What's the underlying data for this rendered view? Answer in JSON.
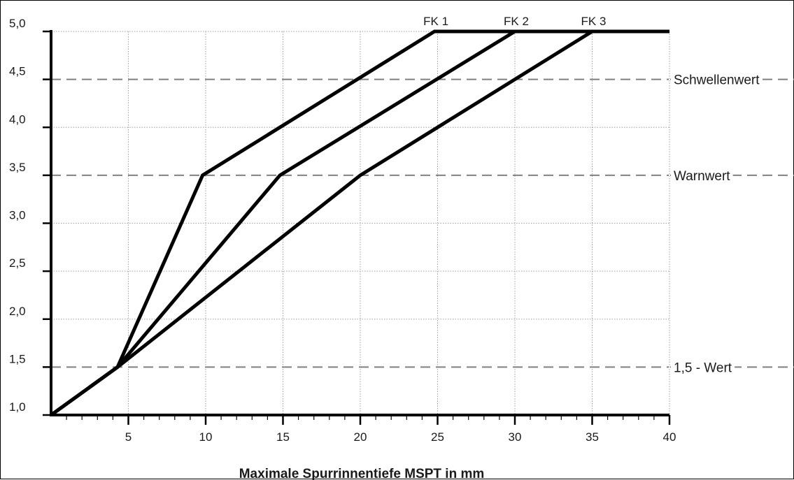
{
  "chart_data": {
    "type": "line",
    "title": "",
    "xlabel": "Maximale Spurrinnentiefe MSPT in mm",
    "ylabel": "",
    "xlim": [
      0,
      40
    ],
    "ylim": [
      1.0,
      5.0
    ],
    "x_ticks": [
      5,
      10,
      15,
      20,
      25,
      30,
      35,
      40
    ],
    "x_tick_labels": [
      "5",
      "10",
      "15",
      "20",
      "25",
      "30",
      "35",
      "40"
    ],
    "x_minor_step": 1,
    "y_ticks": [
      1.0,
      1.5,
      2.0,
      2.5,
      3.0,
      3.5,
      4.0,
      4.5,
      5.0
    ],
    "y_tick_labels": [
      "1,0",
      "1,5",
      "2,0",
      "2,5",
      "3,0",
      "3,5",
      "4,0",
      "4,5",
      "5,0"
    ],
    "grid": true,
    "series": [
      {
        "name": "FK 1",
        "x": [
          0,
          4.3,
          9.8,
          24.8,
          40
        ],
        "y": [
          1.0,
          1.5,
          3.5,
          5.0,
          5.0
        ]
      },
      {
        "name": "FK 2",
        "x": [
          0,
          4.3,
          14.8,
          30,
          40
        ],
        "y": [
          1.0,
          1.5,
          3.5,
          5.0,
          5.0
        ]
      },
      {
        "name": "FK 3",
        "x": [
          0,
          4.3,
          20,
          35,
          40
        ],
        "y": [
          1.0,
          1.5,
          3.5,
          5.0,
          5.0
        ]
      }
    ],
    "reference_lines": [
      {
        "y": 4.5,
        "label": "Schwellenwert"
      },
      {
        "y": 3.5,
        "label": "Warnwert"
      },
      {
        "y": 1.5,
        "label": "1,5 - Wert"
      }
    ],
    "colors": {
      "series": "#000000",
      "grid": "#a0a0a0",
      "reference": "#808080",
      "text": "#1a1a1a"
    }
  }
}
